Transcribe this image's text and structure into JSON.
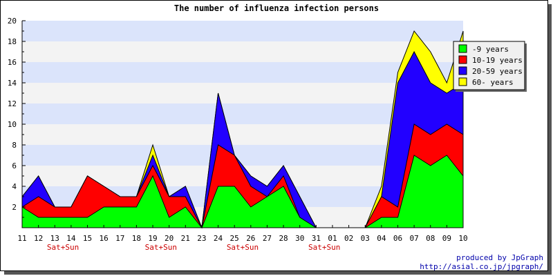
{
  "chart_data": {
    "type": "area",
    "title": "The number of influenza infection persons",
    "stacked": true,
    "categories": [
      "11",
      "12",
      "13",
      "14",
      "15",
      "16",
      "17",
      "18",
      "19",
      "20",
      "21",
      "23",
      "24",
      "25",
      "26",
      "27",
      "28",
      "30",
      "31",
      "01",
      "02",
      "03",
      "04",
      "06",
      "07",
      "08",
      "09",
      "10"
    ],
    "weekend_labels": [
      {
        "after_index": 2,
        "text": "Sat+Sun"
      },
      {
        "after_index": 8,
        "text": "Sat+Sun"
      },
      {
        "after_index": 13,
        "text": "Sat+Sun"
      },
      {
        "after_index": 18,
        "text": "Sat+Sun"
      }
    ],
    "ylim": [
      0,
      20
    ],
    "yticks": [
      2,
      4,
      6,
      8,
      10,
      12,
      14,
      16,
      18,
      20
    ],
    "grid": "horizontal alternating bands",
    "legend_position": "top-right",
    "series": [
      {
        "name": "-9 years",
        "color": "#00ff00",
        "values": [
          2,
          1,
          1,
          1,
          1,
          2,
          2,
          2,
          5,
          1,
          2,
          0,
          4,
          4,
          2,
          3,
          4,
          1,
          0,
          0,
          0,
          0,
          1,
          1,
          7,
          6,
          7,
          5
        ]
      },
      {
        "name": "10-19 years",
        "color": "#ff0000",
        "values": [
          0,
          2,
          1,
          1,
          4,
          2,
          1,
          1,
          1,
          2,
          1,
          0,
          4,
          3,
          2,
          0,
          1,
          0,
          0,
          0,
          0,
          0,
          2,
          1,
          3,
          3,
          3,
          4
        ]
      },
      {
        "name": "20-59 years",
        "color": "#2200ff",
        "values": [
          1,
          2,
          0,
          0,
          0,
          0,
          0,
          0,
          1,
          0,
          1,
          0,
          5,
          0,
          1,
          1,
          1,
          2,
          0,
          0,
          0,
          0,
          0,
          12,
          7,
          5,
          3,
          5
        ]
      },
      {
        "name": "60- years",
        "color": "#ffff00",
        "values": [
          0,
          0,
          0,
          0,
          0,
          0,
          0,
          0,
          1,
          0,
          0,
          0,
          0,
          0,
          0,
          0,
          0,
          0,
          0,
          0,
          0,
          0,
          1,
          1,
          2,
          3,
          1,
          5
        ]
      }
    ]
  },
  "footer": {
    "credit_line1": "produced by JpGraph",
    "credit_line2": "http://asial.co.jp/jpgraph/"
  }
}
